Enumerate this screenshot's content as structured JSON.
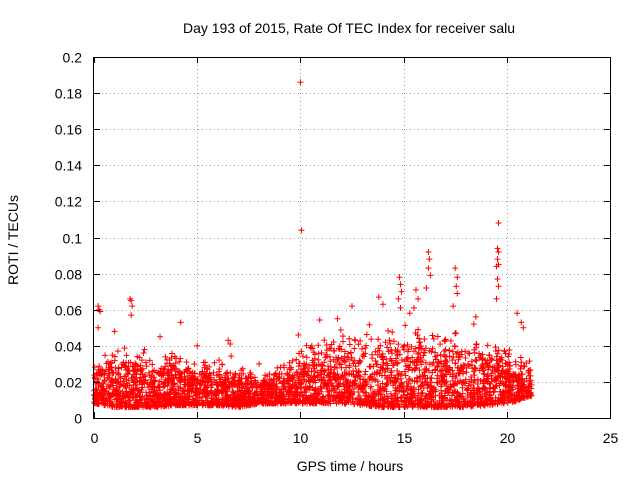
{
  "chart_data": {
    "type": "scatter",
    "title": "Day 193 of 2015, Rate Of TEC Index for receiver salu",
    "xlabel": "GPS time / hours",
    "ylabel": "ROTI / TECUs",
    "xlim": [
      0,
      25
    ],
    "ylim": [
      0,
      0.2
    ],
    "grid": true,
    "marker": "+",
    "color": "#ff0000",
    "x_ticks": [
      "0",
      "5",
      "10",
      "15",
      "20",
      "25"
    ],
    "y_ticks": [
      "0",
      "0.02",
      "0.04",
      "0.06",
      "0.08",
      "0.1",
      "0.12",
      "0.14",
      "0.16",
      "0.18",
      "0.2"
    ],
    "x_tick_values": [
      0,
      5,
      10,
      15,
      20,
      25
    ],
    "y_tick_values": [
      0,
      0.02,
      0.04,
      0.06,
      0.08,
      0.1,
      0.12,
      0.14,
      0.16,
      0.18,
      0.2
    ],
    "data_x_range": [
      0,
      21.2
    ],
    "series": [
      {
        "name": "ROTI",
        "points": [
          [
            10.0,
            0.186
          ],
          [
            10.05,
            0.104
          ],
          [
            19.6,
            0.108
          ],
          [
            19.55,
            0.094
          ],
          [
            19.6,
            0.092
          ],
          [
            19.55,
            0.088
          ],
          [
            19.6,
            0.085
          ],
          [
            19.5,
            0.084
          ],
          [
            19.55,
            0.077
          ],
          [
            19.6,
            0.073
          ],
          [
            19.5,
            0.066
          ],
          [
            16.2,
            0.092
          ],
          [
            16.25,
            0.088
          ],
          [
            16.2,
            0.083
          ],
          [
            16.3,
            0.079
          ],
          [
            16.1,
            0.072
          ],
          [
            17.5,
            0.083
          ],
          [
            17.6,
            0.078
          ],
          [
            17.55,
            0.073
          ],
          [
            17.6,
            0.069
          ],
          [
            17.4,
            0.062
          ],
          [
            14.8,
            0.078
          ],
          [
            14.85,
            0.074
          ],
          [
            14.9,
            0.07
          ],
          [
            14.75,
            0.066
          ],
          [
            14.85,
            0.061
          ],
          [
            15.6,
            0.071
          ],
          [
            15.7,
            0.066
          ],
          [
            15.5,
            0.061
          ],
          [
            0.2,
            0.062
          ],
          [
            0.25,
            0.06
          ],
          [
            0.3,
            0.059
          ],
          [
            0.2,
            0.05
          ],
          [
            1.75,
            0.066
          ],
          [
            1.8,
            0.065
          ],
          [
            1.85,
            0.062
          ],
          [
            1.8,
            0.057
          ],
          [
            13.8,
            0.067
          ],
          [
            14.0,
            0.063
          ],
          [
            18.5,
            0.056
          ],
          [
            18.4,
            0.052
          ],
          [
            20.5,
            0.058
          ],
          [
            20.7,
            0.053
          ],
          [
            20.8,
            0.05
          ],
          [
            4.2,
            0.053
          ],
          [
            6.5,
            0.043
          ],
          [
            6.6,
            0.041
          ],
          [
            9.9,
            0.046
          ],
          [
            1.0,
            0.048
          ],
          [
            12.5,
            0.062
          ],
          [
            11.8,
            0.055
          ],
          [
            15.3,
            0.058
          ],
          [
            3.2,
            0.045
          ],
          [
            5.0,
            0.04
          ],
          [
            8.0,
            0.03
          ],
          [
            2.4,
            0.036
          ]
        ]
      }
    ],
    "noise_band": [
      [
        0.0,
        0.008,
        0.03
      ],
      [
        1.0,
        0.006,
        0.042
      ],
      [
        2.0,
        0.006,
        0.038
      ],
      [
        3.0,
        0.006,
        0.034
      ],
      [
        4.0,
        0.007,
        0.04
      ],
      [
        5.0,
        0.007,
        0.03
      ],
      [
        6.0,
        0.007,
        0.035
      ],
      [
        7.0,
        0.006,
        0.03
      ],
      [
        8.0,
        0.008,
        0.024
      ],
      [
        9.0,
        0.008,
        0.03
      ],
      [
        10.0,
        0.008,
        0.04
      ],
      [
        11.0,
        0.008,
        0.045
      ],
      [
        12.0,
        0.008,
        0.048
      ],
      [
        13.0,
        0.007,
        0.05
      ],
      [
        14.0,
        0.006,
        0.05
      ],
      [
        15.0,
        0.006,
        0.048
      ],
      [
        16.0,
        0.006,
        0.05
      ],
      [
        17.0,
        0.006,
        0.048
      ],
      [
        18.0,
        0.006,
        0.044
      ],
      [
        19.0,
        0.007,
        0.044
      ],
      [
        20.0,
        0.008,
        0.04
      ],
      [
        21.2,
        0.012,
        0.032
      ]
    ]
  }
}
